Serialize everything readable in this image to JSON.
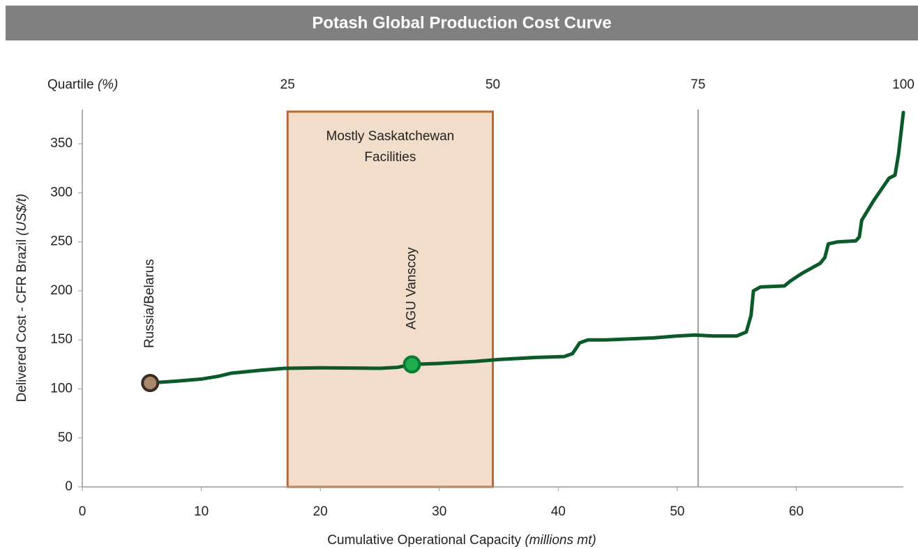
{
  "chart_data": {
    "type": "line",
    "title": "Potash Global Production Cost Curve",
    "xlabel": "Cumulative Operational Capacity",
    "xlabel_unit": "(millions mt)",
    "ylabel": "Delivered Cost - CFR Brazil",
    "ylabel_unit": "(US$/t)",
    "x2label": "Quartile",
    "x2label_unit": "(%)",
    "xlim": [
      0,
      69
    ],
    "xticks": [
      0,
      10,
      20,
      30,
      40,
      50,
      60
    ],
    "ylim": [
      0,
      385
    ],
    "yticks": [
      0,
      50,
      100,
      150,
      200,
      250,
      300,
      350
    ],
    "x2lim": [
      0,
      100
    ],
    "x2ticks": [
      25,
      50,
      75,
      100
    ],
    "x": [
      5.7,
      8,
      10,
      11.5,
      12.5,
      15,
      17,
      20,
      25,
      26.5,
      27.7,
      30,
      33,
      35,
      38,
      40.5,
      41.2,
      41.8,
      42.5,
      44,
      48,
      50,
      51.5,
      53,
      55,
      55.8,
      56.2,
      56.4,
      57,
      59,
      59.5,
      60.5,
      62,
      62.4,
      62.7,
      63.5,
      65,
      65.3,
      65.5,
      66.5,
      67.8,
      68.3,
      68.6,
      69
    ],
    "series": [
      {
        "color": "#0b5a2a",
        "values": [
          106,
          108,
          110,
          113,
          116,
          119,
          121,
          121.5,
          121,
          122,
          125,
          126,
          128,
          130,
          132,
          133,
          136,
          147,
          150,
          150,
          152,
          154,
          155,
          154,
          154,
          158,
          175,
          200,
          204,
          205,
          210,
          218,
          228,
          234,
          248,
          250,
          251,
          255,
          272,
          292,
          315,
          318,
          340,
          382
        ]
      }
    ],
    "points": [
      {
        "label": "Russia/Belarus",
        "x": 5.7,
        "y": 106,
        "color": "#a9876a"
      },
      {
        "label": "AGU Vanscoy",
        "x": 27.7,
        "y": 125,
        "color": "#1fae4e"
      }
    ],
    "highlight": {
      "from": 25,
      "to": 50,
      "label": [
        "Mostly Saskatchewan",
        "Facilities"
      ],
      "fill": "#f2ddcb",
      "stroke": "#c0682a"
    },
    "quartile_line": 75
  }
}
